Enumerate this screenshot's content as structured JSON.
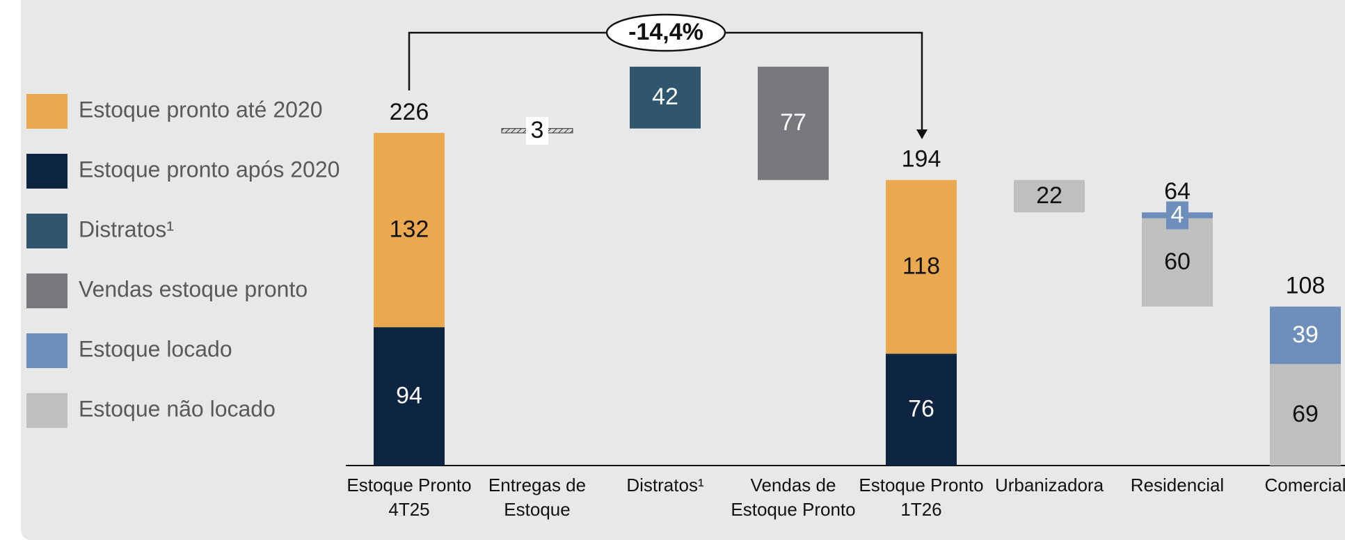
{
  "chart_data": {
    "type": "waterfall",
    "categories": [
      "Estoque Pronto 4T25",
      "Entregas de Estoque",
      "Distratos¹",
      "Vendas de Estoque Pronto",
      "Estoque Pronto 1T26",
      "Urbanizadora",
      "Residencial",
      "Comercial"
    ],
    "measure": [
      "total",
      "increase",
      "increase",
      "decrease",
      "total",
      "decrease",
      "decrease",
      "decrease"
    ],
    "series": [
      {
        "name": "Estoque pronto até 2020",
        "color": "#EBA94F",
        "values": [
          132,
          null,
          null,
          null,
          118,
          null,
          null,
          null
        ]
      },
      {
        "name": "Estoque pronto após 2020",
        "color": "#0E2542",
        "values": [
          94,
          null,
          null,
          null,
          76,
          null,
          null,
          null
        ]
      },
      {
        "name": "Distratos¹",
        "color": "#2F566C",
        "values": [
          null,
          null,
          42,
          null,
          null,
          null,
          null,
          null
        ]
      },
      {
        "name": "Vendas estoque pronto",
        "color": "#77787B",
        "values": [
          null,
          null,
          null,
          77,
          null,
          null,
          null,
          null
        ]
      },
      {
        "name": "Estoque locado",
        "color": "#6E8FBC",
        "values": [
          null,
          null,
          null,
          null,
          null,
          null,
          4,
          39
        ]
      },
      {
        "name": "Estoque não locado",
        "color": "#BFBFBF",
        "values": [
          null,
          null,
          null,
          null,
          null,
          22,
          60,
          69
        ]
      },
      {
        "color": "#D9D9D9",
        "pattern": "hatch",
        "values": [
          null,
          3,
          null,
          null,
          null,
          null,
          null,
          null
        ]
      }
    ],
    "totals": [
      226,
      null,
      null,
      null,
      194,
      null,
      64,
      108
    ],
    "annotation": "-14,4%",
    "legend": "left"
  }
}
